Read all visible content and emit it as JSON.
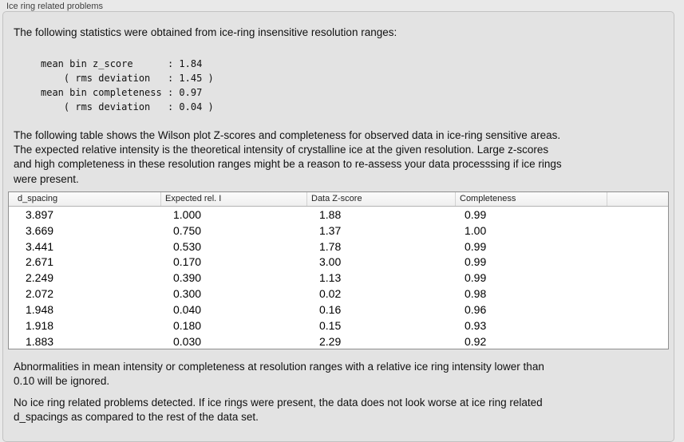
{
  "panel": {
    "title": "Ice ring related problems"
  },
  "intro": {
    "text": "The following statistics were obtained from ice-ring insensitive resolution ranges:",
    "stats_block": "mean bin z_score      : 1.84\n    ( rms deviation   : 1.45 )\nmean bin completeness : 0.97\n    ( rms deviation   : 0.04 )"
  },
  "description": "The following table shows the Wilson plot Z-scores and completeness for observed data in ice-ring sensitive areas.\nThe expected relative intensity is the theoretical intensity of crystalline ice at the given resolution. Large z-scores\nand high completeness in these resolution ranges might be a reason to re-assess your data processsing if ice rings\nwere present.",
  "table": {
    "headers": [
      "d_spacing",
      "Expected rel. I",
      "Data Z-score",
      "Completeness"
    ],
    "rows": [
      [
        "3.897",
        "1.000",
        "1.88",
        "0.99"
      ],
      [
        "3.669",
        "0.750",
        "1.37",
        "1.00"
      ],
      [
        "3.441",
        "0.530",
        "1.78",
        "0.99"
      ],
      [
        "2.671",
        "0.170",
        "3.00",
        "0.99"
      ],
      [
        "2.249",
        "0.390",
        "1.13",
        "0.99"
      ],
      [
        "2.072",
        "0.300",
        "0.02",
        "0.98"
      ],
      [
        "1.948",
        "0.040",
        "0.16",
        "0.96"
      ],
      [
        "1.918",
        "0.180",
        "0.15",
        "0.93"
      ],
      [
        "1.883",
        "0.030",
        "2.29",
        "0.92"
      ]
    ]
  },
  "notes": {
    "ignore_note": "Abnormalities in mean intensity or completeness at resolution ranges with a relative ice ring intensity lower than\n0.10 will be ignored.",
    "conclusion": "No ice ring related problems detected. If ice rings were present, the data does not look worse at ice ring related\nd_spacings as compared to the rest of the data set."
  },
  "colors": {
    "page_background": "#e9e9e9",
    "panel_background": "#e3e3e3",
    "panel_border": "#c2c2c2",
    "table_background": "#ffffff",
    "table_border": "#8f8f8f",
    "text": "#111111"
  }
}
